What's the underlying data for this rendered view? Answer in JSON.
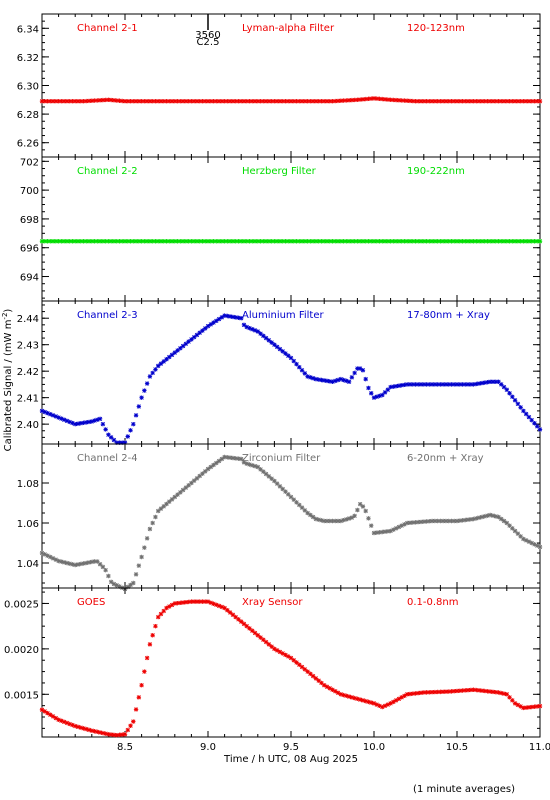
{
  "chart_data": {
    "type": "scatter",
    "footer_note": "(1 minute averages)",
    "xlabel": "Time / h UTC, 08 Aug 2025",
    "ylabel": "Calibrated Signal / (mW m",
    "ylabel_superscript": "-2",
    "ylabel_close": ")",
    "xlim": [
      8.0,
      11.0
    ],
    "xticks": [
      8.5,
      9.0,
      9.5,
      10.0,
      10.5,
      11.0
    ],
    "xtick_labels": [
      "8.5",
      "9.0",
      "9.5",
      "10.0",
      "10.5",
      "11.0"
    ],
    "event_marker": {
      "x": 9.0,
      "labels": [
        "3560",
        "C2.5"
      ]
    },
    "panels": [
      {
        "channel": "Channel 2-1",
        "filter": "Lyman-alpha Filter",
        "band": "120-123nm",
        "color": "#ee0000",
        "ylim": [
          6.25,
          6.35
        ],
        "yticks": [
          6.26,
          6.28,
          6.3,
          6.32,
          6.34
        ],
        "ytick_labels": [
          "6.26",
          "6.28",
          "6.30",
          "6.32",
          "6.34"
        ],
        "series": {
          "x": [
            8.0,
            8.25,
            8.4,
            8.5,
            8.75,
            9.0,
            9.25,
            9.5,
            9.75,
            9.9,
            10.0,
            10.1,
            10.25,
            10.5,
            10.75,
            11.0
          ],
          "y": [
            6.289,
            6.289,
            6.29,
            6.289,
            6.289,
            6.289,
            6.289,
            6.289,
            6.289,
            6.29,
            6.291,
            6.29,
            6.289,
            6.289,
            6.289,
            6.289
          ]
        }
      },
      {
        "channel": "Channel 2-2",
        "filter": "Herzberg Filter",
        "band": "190-222nm",
        "color": "#00dd00",
        "ylim": [
          692.3,
          702.3
        ],
        "yticks": [
          694,
          696,
          698,
          700,
          702
        ],
        "ytick_labels": [
          "694",
          "696",
          "698",
          "700",
          "702"
        ],
        "series": {
          "x": [
            8.0,
            8.5,
            9.0,
            9.5,
            10.0,
            10.5,
            11.0
          ],
          "y": [
            696.45,
            696.45,
            696.45,
            696.45,
            696.45,
            696.45,
            696.45
          ]
        }
      },
      {
        "channel": "Channel 2-3",
        "filter": "Aluminium Filter",
        "band": "17-80nm + Xray",
        "color": "#0000cc",
        "ylim": [
          2.3925,
          2.4465
        ],
        "yticks": [
          2.4,
          2.41,
          2.42,
          2.43,
          2.44
        ],
        "ytick_labels": [
          "2.40",
          "2.41",
          "2.42",
          "2.43",
          "2.44"
        ],
        "series": {
          "x": [
            8.0,
            8.08,
            8.2,
            8.3,
            8.35,
            8.4,
            8.45,
            8.5,
            8.55,
            8.6,
            8.65,
            8.7,
            8.8,
            8.9,
            9.0,
            9.1,
            9.2,
            9.22,
            9.3,
            9.4,
            9.5,
            9.6,
            9.65,
            9.75,
            9.8,
            9.85,
            9.88,
            9.9,
            9.93,
            9.97,
            10.0,
            10.05,
            10.1,
            10.2,
            10.3,
            10.5,
            10.6,
            10.7,
            10.75,
            10.8,
            10.9,
            11.0
          ],
          "y": [
            2.405,
            2.403,
            2.4,
            2.401,
            2.402,
            2.396,
            2.393,
            2.393,
            2.4,
            2.41,
            2.418,
            2.422,
            2.427,
            2.432,
            2.437,
            2.441,
            2.44,
            2.437,
            2.435,
            2.43,
            2.425,
            2.418,
            2.417,
            2.416,
            2.417,
            2.416,
            2.419,
            2.421,
            2.421,
            2.413,
            2.41,
            2.411,
            2.414,
            2.415,
            2.415,
            2.415,
            2.415,
            2.416,
            2.416,
            2.413,
            2.405,
            2.398
          ]
        }
      },
      {
        "channel": "Channel 2-4",
        "filter": "Zirconium Filter",
        "band": "6-20nm + Xray",
        "color": "#707070",
        "ylim": [
          1.0275,
          1.0995
        ],
        "yticks": [
          1.04,
          1.06,
          1.08
        ],
        "ytick_labels": [
          "1.04",
          "1.06",
          "1.08"
        ],
        "series": {
          "x": [
            8.0,
            8.1,
            8.2,
            8.33,
            8.38,
            8.42,
            8.5,
            8.55,
            8.6,
            8.65,
            8.7,
            8.8,
            8.9,
            9.0,
            9.1,
            9.2,
            9.22,
            9.3,
            9.4,
            9.5,
            9.6,
            9.65,
            9.7,
            9.8,
            9.88,
            9.92,
            9.95,
            10.0,
            10.1,
            10.2,
            10.35,
            10.5,
            10.6,
            10.7,
            10.75,
            10.8,
            10.9,
            11.0
          ],
          "y": [
            1.045,
            1.041,
            1.039,
            1.041,
            1.037,
            1.03,
            1.027,
            1.03,
            1.043,
            1.057,
            1.066,
            1.073,
            1.08,
            1.087,
            1.093,
            1.092,
            1.09,
            1.088,
            1.081,
            1.073,
            1.065,
            1.062,
            1.061,
            1.061,
            1.063,
            1.07,
            1.066,
            1.055,
            1.056,
            1.06,
            1.061,
            1.061,
            1.062,
            1.064,
            1.063,
            1.06,
            1.052,
            1.048
          ]
        }
      },
      {
        "channel": "GOES",
        "filter": "Xray Sensor",
        "band": "0.1-0.8nm",
        "color": "#ee0000",
        "ylim": [
          0.00103,
          0.00267
        ],
        "yticks": [
          0.0015,
          0.002,
          0.0025
        ],
        "ytick_labels": [
          "0.0015",
          "0.0020",
          "0.0025"
        ],
        "series": {
          "x": [
            8.0,
            8.1,
            8.2,
            8.3,
            8.4,
            8.45,
            8.5,
            8.55,
            8.6,
            8.65,
            8.7,
            8.75,
            8.8,
            8.9,
            9.0,
            9.1,
            9.2,
            9.3,
            9.4,
            9.5,
            9.6,
            9.7,
            9.8,
            9.9,
            10.0,
            10.05,
            10.1,
            10.2,
            10.3,
            10.45,
            10.6,
            10.75,
            10.8,
            10.85,
            10.9,
            11.0
          ],
          "y": [
            0.00133,
            0.00122,
            0.00115,
            0.0011,
            0.00106,
            0.00105,
            0.00106,
            0.0012,
            0.0016,
            0.00205,
            0.00235,
            0.00245,
            0.0025,
            0.00252,
            0.00252,
            0.00245,
            0.0023,
            0.00215,
            0.002,
            0.0019,
            0.00175,
            0.0016,
            0.0015,
            0.00145,
            0.0014,
            0.00136,
            0.0014,
            0.0015,
            0.00152,
            0.00153,
            0.00155,
            0.00152,
            0.0015,
            0.0014,
            0.00135,
            0.00137
          ]
        }
      }
    ]
  }
}
